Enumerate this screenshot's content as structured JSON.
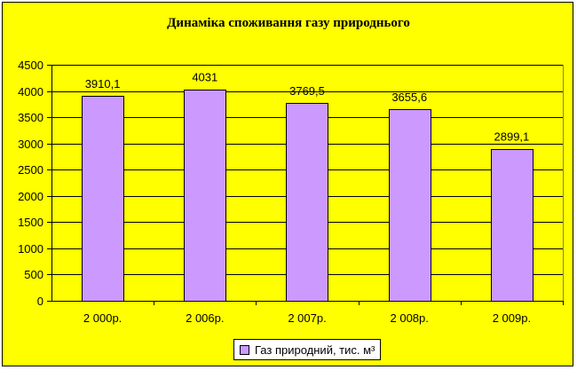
{
  "chart_data": {
    "type": "bar",
    "title": "Динаміка споживання газу природнього",
    "categories": [
      "2 000р.",
      "2 006р.",
      "2 007р.",
      "2 008р.",
      "2 009р."
    ],
    "series": [
      {
        "name": "Газ природний, тис. м³",
        "values": [
          3910.1,
          4031,
          3769.5,
          3655.6,
          2899.1
        ],
        "labels": [
          "3910,1",
          "4031",
          "3769,5",
          "3655,6",
          "2899,1"
        ]
      }
    ],
    "ylim": [
      0,
      4500
    ],
    "yticks": [
      "0",
      "500",
      "1000",
      "1500",
      "2000",
      "2500",
      "3000",
      "3500",
      "4000",
      "4500"
    ],
    "grid": true,
    "legend_position": "bottom",
    "colors": {
      "background": "#ffff00",
      "plot_background": "#ffff00",
      "bar": "#cc99ff",
      "grid": "#000000"
    }
  }
}
